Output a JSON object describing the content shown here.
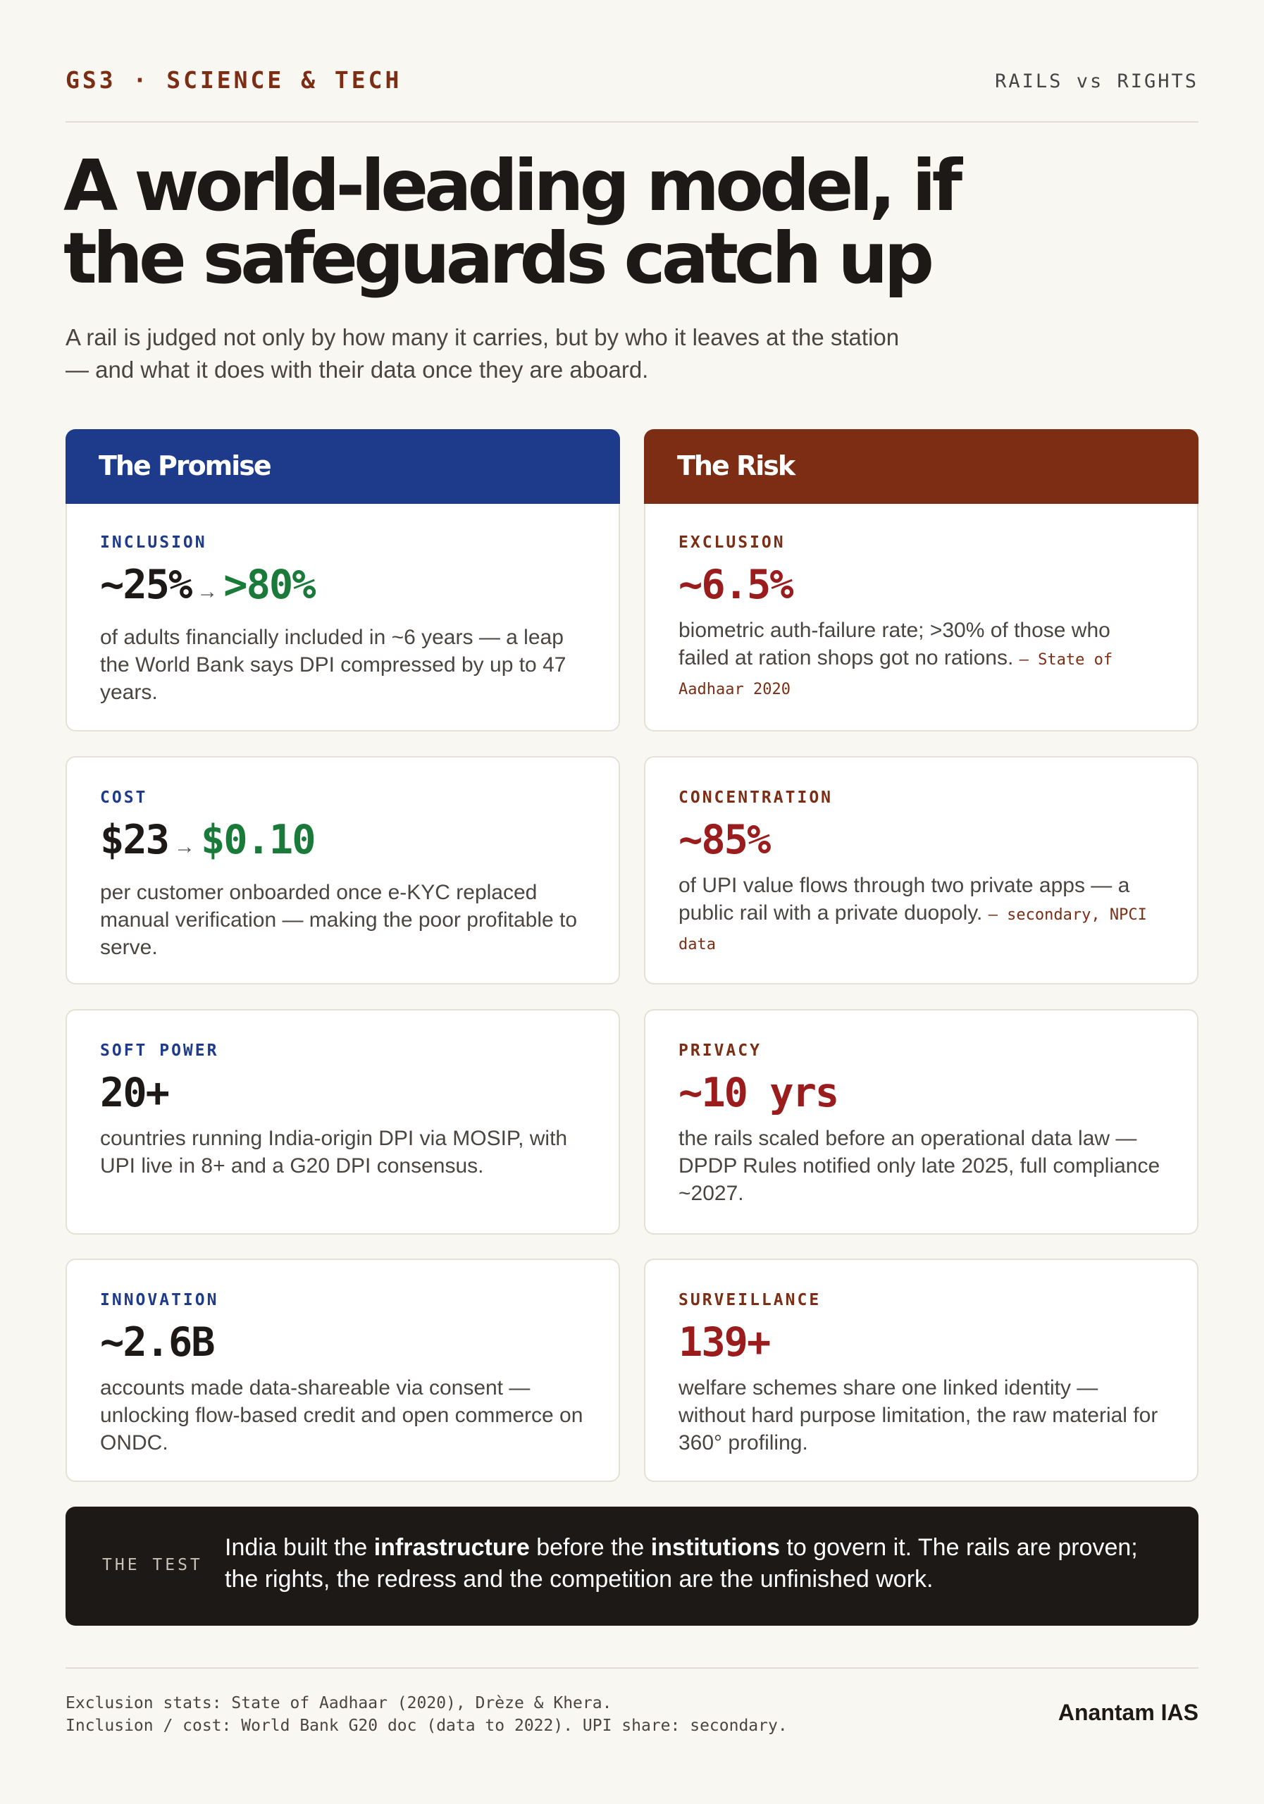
{
  "header": {
    "left": "GS3 · SCIENCE & TECH",
    "right": "RAILS vs RIGHTS"
  },
  "title_lines": [
    "A world-leading model, if",
    "the safeguards catch up"
  ],
  "subtitle_lines": [
    "A rail is judged not only by how many it carries, but by who it leaves at the station",
    "— and what it does with their data once they are aboard."
  ],
  "columns": [
    {
      "heading": "The Promise",
      "cards": [
        {
          "label": "INCLUSION",
          "stat": "~25%",
          "arrow": "→",
          "stat_to": ">80%",
          "detail": "of adults financially included in ~6 years — a leap the World Bank says DPI compressed by up to 47 years."
        },
        {
          "label": "COST",
          "stat": "$23",
          "arrow": "→",
          "stat_to": "$0.10",
          "detail": "per customer onboarded once e-KYC replaced manual verification — making the poor profitable to serve."
        },
        {
          "label": "SOFT POWER",
          "stat": "20+",
          "detail": "countries running India-origin DPI via MOSIP, with UPI live in 8+ and a G20 DPI consensus."
        },
        {
          "label": "INNOVATION",
          "stat": "~2.6B",
          "detail": "accounts made data-shareable via consent — unlocking flow-based credit and open commerce on ONDC."
        }
      ]
    },
    {
      "heading": "The Risk",
      "cards": [
        {
          "label": "EXCLUSION",
          "stat": "~6.5%",
          "detail": "biometric auth-failure rate; >30% of those who failed at ration shops got no rations.",
          "source": "— State of Aadhaar 2020"
        },
        {
          "label": "CONCENTRATION",
          "stat": "~85%",
          "detail": "of UPI value flows through two private apps — a public rail with a private duopoly.",
          "source": "— secondary, NPCI data"
        },
        {
          "label": "PRIVACY",
          "stat": "~10 yrs",
          "detail": "the rails scaled before an operational data law — DPDP Rules notified only late 2025, full compliance ~2027."
        },
        {
          "label": "SURVEILLANCE",
          "stat": "139+",
          "detail": "welfare schemes share one linked identity — without hard purpose limitation, the raw material for 360° profiling."
        }
      ]
    }
  ],
  "test": {
    "label": "THE TEST",
    "segments": [
      {
        "text": "India built the ",
        "bold": false
      },
      {
        "text": "infrastructure",
        "bold": true
      },
      {
        "text": " before the ",
        "bold": false
      },
      {
        "text": "institutions",
        "bold": true
      },
      {
        "text": " to govern it. The rails are proven; the rights, the redress and the competition are the unfinished work.",
        "bold": false
      }
    ]
  },
  "footer": {
    "notes": [
      "Exclusion stats: State of Aadhaar (2020), Drèze & Khera.",
      "Inclusion / cost: World Bank G20 doc (data to 2022). UPI share: secondary."
    ],
    "brand": "Anantam IAS"
  }
}
